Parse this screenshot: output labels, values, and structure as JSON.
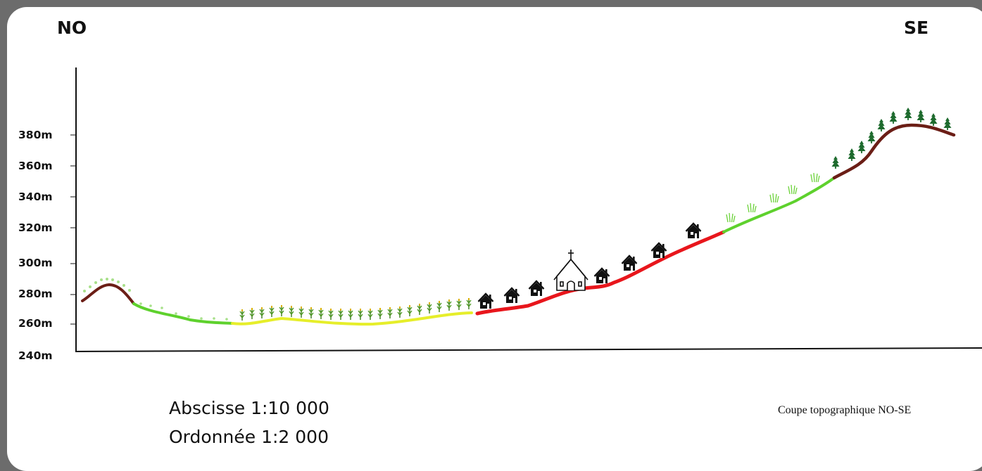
{
  "directions": {
    "left": "NO",
    "right": "SE"
  },
  "y_axis": {
    "ticks": [
      "380m",
      "360m",
      "340m",
      "320m",
      "300m",
      "280m",
      "260m",
      "240m"
    ]
  },
  "scale": {
    "abscissa": "Abscisse 1:10 000",
    "ordinate": "Ordonnée 1:2 000"
  },
  "caption": "Coupe topographique NO-SE",
  "legend_colors": {
    "forest": "#6b1e16",
    "meadow": "#5ed12d",
    "cropland": "#e6ee2a",
    "urban": "#e8161c",
    "trees": "#1e6b2e",
    "buildings": "#111111"
  },
  "icons": [
    "house-icon",
    "church-icon",
    "conifer-icon",
    "grass-icon",
    "crop-icon"
  ]
}
